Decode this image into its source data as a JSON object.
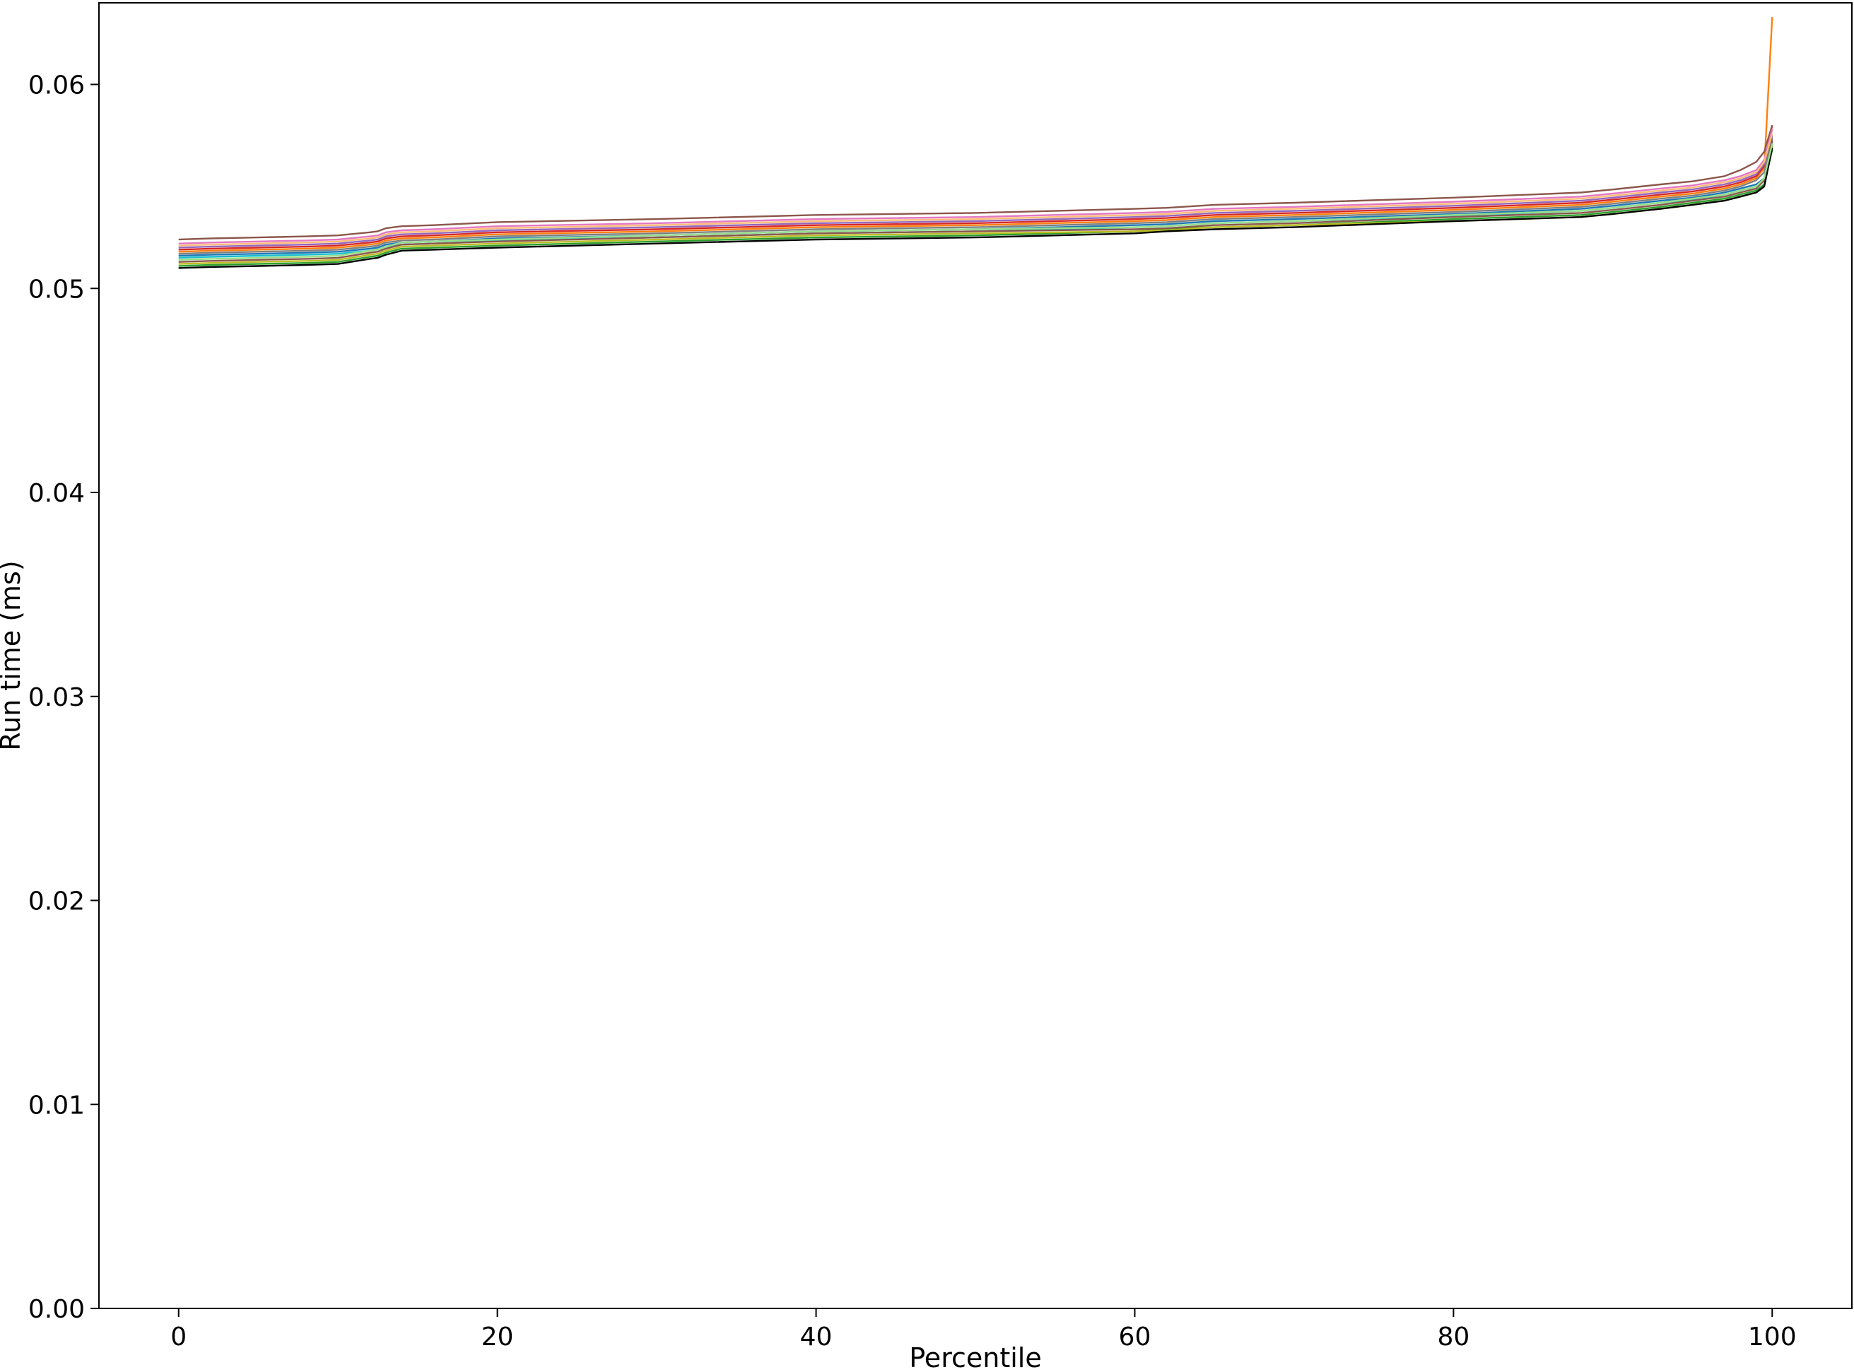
{
  "chart_data": {
    "type": "line",
    "title": "",
    "xlabel": "Percentile",
    "ylabel": "Run time (ms)",
    "xlim": [
      -5,
      105
    ],
    "ylim": [
      0.0,
      0.064
    ],
    "xticks": [
      0,
      20,
      40,
      60,
      80,
      100
    ],
    "xtick_labels": [
      "0",
      "20",
      "40",
      "60",
      "80",
      "100"
    ],
    "yticks": [
      0.0,
      0.01,
      0.02,
      0.03,
      0.04,
      0.05,
      0.06
    ],
    "ytick_labels": [
      "0.00",
      "0.01",
      "0.02",
      "0.03",
      "0.04",
      "0.05",
      "0.06"
    ],
    "grid": false,
    "legend": "none",
    "x": [
      0,
      2,
      5,
      8,
      10,
      12,
      12.5,
      13,
      14,
      16,
      20,
      30,
      40,
      50,
      60,
      62,
      65,
      70,
      80,
      88,
      90,
      93,
      95,
      97,
      98,
      99,
      99.5,
      100
    ],
    "series": [
      {
        "color": "#1f77b4",
        "values": [
          0.0516,
          0.05165,
          0.0517,
          0.05175,
          0.0518,
          0.05195,
          0.052,
          0.05215,
          0.05225,
          0.0523,
          0.05245,
          0.0526,
          0.0528,
          0.0529,
          0.0531,
          0.05315,
          0.0533,
          0.0534,
          0.05365,
          0.0539,
          0.05405,
          0.0543,
          0.05445,
          0.0547,
          0.0549,
          0.0551,
          0.0554,
          0.0572
        ]
      },
      {
        "color": "#ff7f0e",
        "values": [
          0.0518,
          0.05185,
          0.0519,
          0.05195,
          0.052,
          0.05215,
          0.0522,
          0.05235,
          0.05245,
          0.0525,
          0.05265,
          0.0528,
          0.053,
          0.0531,
          0.0533,
          0.05335,
          0.0535,
          0.0536,
          0.05385,
          0.0541,
          0.05425,
          0.0545,
          0.05465,
          0.0549,
          0.0551,
          0.0554,
          0.0559,
          0.0633
        ]
      },
      {
        "color": "#2ca02c",
        "values": [
          0.0511,
          0.05115,
          0.0512,
          0.05125,
          0.0513,
          0.05155,
          0.0516,
          0.05175,
          0.05195,
          0.052,
          0.0521,
          0.0523,
          0.0525,
          0.0526,
          0.0528,
          0.0529,
          0.053,
          0.0531,
          0.0534,
          0.0536,
          0.05375,
          0.054,
          0.0542,
          0.0544,
          0.0546,
          0.0548,
          0.0551,
          0.0568
        ]
      },
      {
        "color": "#d62728",
        "values": [
          0.0519,
          0.05195,
          0.052,
          0.05205,
          0.0521,
          0.05225,
          0.0523,
          0.05245,
          0.05255,
          0.0526,
          0.05275,
          0.0529,
          0.0531,
          0.0532,
          0.0534,
          0.05345,
          0.0536,
          0.0537,
          0.05395,
          0.0542,
          0.05435,
          0.0546,
          0.05475,
          0.055,
          0.0552,
          0.0555,
          0.056,
          0.058
        ]
      },
      {
        "color": "#9467bd",
        "values": [
          0.052,
          0.05205,
          0.0521,
          0.05215,
          0.0522,
          0.05235,
          0.0524,
          0.05255,
          0.05265,
          0.0527,
          0.05285,
          0.053,
          0.0532,
          0.0533,
          0.0535,
          0.05355,
          0.0537,
          0.0538,
          0.05405,
          0.0543,
          0.05445,
          0.0547,
          0.05485,
          0.0551,
          0.0553,
          0.0556,
          0.0561,
          0.0575
        ]
      },
      {
        "color": "#8c564b",
        "values": [
          0.0524,
          0.05245,
          0.0525,
          0.05255,
          0.0526,
          0.05275,
          0.0528,
          0.05295,
          0.05305,
          0.0531,
          0.05325,
          0.0534,
          0.0536,
          0.0537,
          0.0539,
          0.05395,
          0.0541,
          0.0542,
          0.05445,
          0.0547,
          0.05485,
          0.0551,
          0.05525,
          0.0555,
          0.0558,
          0.0562,
          0.0567,
          0.058
        ]
      },
      {
        "color": "#e377c2",
        "values": [
          0.0522,
          0.05225,
          0.0523,
          0.05235,
          0.0524,
          0.05255,
          0.0526,
          0.05275,
          0.05285,
          0.0529,
          0.05305,
          0.0532,
          0.0534,
          0.0535,
          0.0537,
          0.05375,
          0.0539,
          0.054,
          0.05425,
          0.0545,
          0.05465,
          0.0549,
          0.05505,
          0.0553,
          0.0555,
          0.0558,
          0.0563,
          0.0578
        ]
      },
      {
        "color": "#7f7f7f",
        "values": [
          0.0517,
          0.05175,
          0.0518,
          0.05185,
          0.0519,
          0.05205,
          0.0521,
          0.05225,
          0.05235,
          0.0524,
          0.05255,
          0.0527,
          0.0529,
          0.053,
          0.0532,
          0.05325,
          0.0534,
          0.0535,
          0.05375,
          0.054,
          0.05415,
          0.0544,
          0.05455,
          0.0548,
          0.055,
          0.0553,
          0.0557,
          0.0574
        ]
      },
      {
        "color": "#bcbd22",
        "values": [
          0.0512,
          0.05125,
          0.0513,
          0.05135,
          0.0514,
          0.05165,
          0.0517,
          0.05185,
          0.05205,
          0.0521,
          0.0522,
          0.0524,
          0.0526,
          0.0527,
          0.0528,
          0.05285,
          0.053,
          0.0531,
          0.0533,
          0.0535,
          0.05365,
          0.0539,
          0.0541,
          0.0543,
          0.0545,
          0.0547,
          0.055,
          0.057
        ]
      },
      {
        "color": "#17becf",
        "values": [
          0.0515,
          0.05155,
          0.0516,
          0.05165,
          0.0517,
          0.05185,
          0.0519,
          0.05205,
          0.05215,
          0.0522,
          0.05235,
          0.0525,
          0.0527,
          0.0528,
          0.053,
          0.05305,
          0.0532,
          0.0533,
          0.05355,
          0.0538,
          0.05395,
          0.0542,
          0.05435,
          0.0546,
          0.0548,
          0.055,
          0.0554,
          0.0571
        ]
      },
      {
        "color": "#8c564b",
        "values": [
          0.0513,
          0.05135,
          0.0514,
          0.05145,
          0.0515,
          0.05175,
          0.0518,
          0.05195,
          0.05215,
          0.0522,
          0.0523,
          0.0525,
          0.0527,
          0.0528,
          0.0529,
          0.05295,
          0.0531,
          0.0532,
          0.0535,
          0.0537,
          0.05385,
          0.0541,
          0.0543,
          0.0545,
          0.0547,
          0.0549,
          0.0553,
          0.0573
        ]
      },
      {
        "color": "#000000",
        "values": [
          0.051,
          0.05105,
          0.0511,
          0.05115,
          0.0512,
          0.05145,
          0.0515,
          0.05165,
          0.05185,
          0.0519,
          0.052,
          0.0522,
          0.0524,
          0.0525,
          0.0527,
          0.0528,
          0.0529,
          0.053,
          0.0533,
          0.0535,
          0.05365,
          0.0539,
          0.0541,
          0.0543,
          0.0545,
          0.0547,
          0.055,
          0.0569
        ]
      },
      {
        "color": "#ffbb78",
        "values": [
          0.0521,
          0.05215,
          0.0522,
          0.05225,
          0.0523,
          0.05245,
          0.0525,
          0.05265,
          0.05275,
          0.0528,
          0.05295,
          0.0531,
          0.0533,
          0.0534,
          0.0536,
          0.05365,
          0.0538,
          0.0539,
          0.05415,
          0.0544,
          0.05455,
          0.0548,
          0.05495,
          0.0552,
          0.0554,
          0.0557,
          0.0562,
          0.0576
        ]
      },
      {
        "color": "#98df8a",
        "values": [
          0.0514,
          0.05145,
          0.0515,
          0.05155,
          0.0516,
          0.05185,
          0.0519,
          0.05205,
          0.05225,
          0.0523,
          0.0524,
          0.0526,
          0.0528,
          0.0529,
          0.053,
          0.05305,
          0.0532,
          0.0533,
          0.0536,
          0.0538,
          0.05395,
          0.0542,
          0.0544,
          0.0546,
          0.0548,
          0.055,
          0.0554,
          0.0571
        ]
      }
    ]
  }
}
